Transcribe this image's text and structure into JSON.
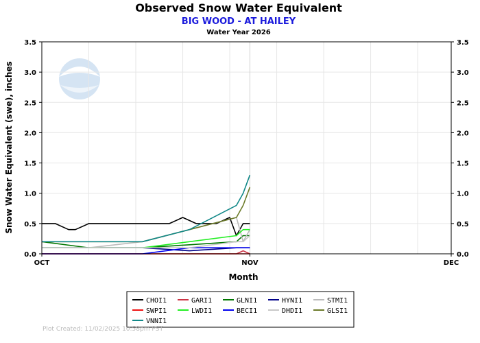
{
  "header": {
    "title": "Observed Snow Water Equivalent",
    "subtitle": "BIG WOOD - AT HAILEY",
    "water_year": "Water Year 2026"
  },
  "footer": {
    "text": "Plot Created: 11/02/2025 10:58pm PST"
  },
  "colors": {
    "subtitle": "#1a1adc",
    "grid": "#e6e6e6"
  },
  "chart_data": {
    "type": "line",
    "xlabel": "Month",
    "ylabel": "Snow Water Equivalent (swe),  inches",
    "x_ticks": [
      "OCT",
      "NOV",
      "DEC"
    ],
    "x_domain": [
      "Oct 1",
      "Dec 1"
    ],
    "ylim": [
      0,
      3.5
    ],
    "y_ticks": [
      "0.0",
      "0.5",
      "1.0",
      "1.5",
      "2.0",
      "2.5",
      "3.0",
      "3.5"
    ],
    "grid": true,
    "legend_position": "bottom",
    "series": [
      {
        "name": "CHOI1",
        "color": "#000000",
        "x": [
          "Oct 1",
          "Oct 3",
          "Oct 5",
          "Oct 6",
          "Oct 8",
          "Oct 10",
          "Oct 12",
          "Oct 14",
          "Oct 16",
          "Oct 18",
          "Oct 20",
          "Oct 22",
          "Oct 24",
          "Oct 25",
          "Oct 27",
          "Oct 29",
          "Oct 30",
          "Oct 31",
          "Nov 1"
        ],
        "y": [
          0.5,
          0.5,
          0.4,
          0.4,
          0.5,
          0.5,
          0.5,
          0.5,
          0.5,
          0.5,
          0.5,
          0.6,
          0.5,
          0.5,
          0.5,
          0.6,
          0.3,
          0.5,
          0.5
        ]
      },
      {
        "name": "GARI1",
        "color": "#cc3344",
        "x": [
          "Oct 1",
          "Oct 8",
          "Oct 16",
          "Oct 23",
          "Oct 30",
          "Oct 31",
          "Nov 1"
        ],
        "y": [
          0.0,
          0.0,
          0.0,
          0.0,
          0.0,
          0.05,
          0.0
        ]
      },
      {
        "name": "GLNI1",
        "color": "#007700",
        "x": [
          "Oct 1",
          "Oct 8",
          "Oct 16",
          "Oct 23",
          "Oct 30",
          "Oct 31",
          "Nov 1"
        ],
        "y": [
          0.2,
          0.1,
          0.1,
          0.15,
          0.2,
          0.3,
          0.3
        ]
      },
      {
        "name": "HYNI1",
        "color": "#000088",
        "x": [
          "Oct 1",
          "Oct 8",
          "Oct 16",
          "Oct 23",
          "Oct 30",
          "Oct 31",
          "Nov 1"
        ],
        "y": [
          0.1,
          0.1,
          0.1,
          0.05,
          0.1,
          0.1,
          0.1
        ]
      },
      {
        "name": "STMI1",
        "color": "#bbbbbb",
        "x": [
          "Oct 1",
          "Oct 8",
          "Oct 16",
          "Oct 23",
          "Oct 30",
          "Oct 31",
          "Nov 1"
        ],
        "y": [
          0.1,
          0.1,
          0.2,
          0.4,
          0.6,
          0.2,
          0.4
        ]
      },
      {
        "name": "SWPI1",
        "color": "#ee1111",
        "x": [
          "Oct 1",
          "Oct 8",
          "Oct 16",
          "Oct 23",
          "Oct 30",
          "Oct 31",
          "Nov 1"
        ],
        "y": [
          0.0,
          0.0,
          0.0,
          0.0,
          0.0,
          0.0,
          0.0
        ]
      },
      {
        "name": "LWDI1",
        "color": "#22ee22",
        "x": [
          "Oct 1",
          "Oct 8",
          "Oct 16",
          "Oct 23",
          "Oct 30",
          "Oct 31",
          "Nov 1"
        ],
        "y": [
          0.1,
          0.1,
          0.1,
          0.2,
          0.3,
          0.4,
          0.4
        ]
      },
      {
        "name": "BECI1",
        "color": "#0000ee",
        "x": [
          "Oct 1",
          "Oct 8",
          "Oct 16",
          "Oct 23",
          "Oct 30",
          "Oct 31",
          "Nov 1"
        ],
        "y": [
          0.0,
          0.0,
          0.0,
          0.1,
          0.1,
          0.1,
          0.1
        ]
      },
      {
        "name": "DHDI1",
        "color": "#c8c8c8",
        "x": [
          "Oct 1",
          "Oct 8",
          "Oct 16",
          "Oct 23",
          "Oct 30",
          "Oct 31",
          "Nov 1"
        ],
        "y": [
          0.1,
          0.1,
          0.1,
          0.1,
          0.2,
          0.2,
          0.3
        ]
      },
      {
        "name": "GLSI1",
        "color": "#6b7a28",
        "x": [
          "Oct 1",
          "Oct 8",
          "Oct 16",
          "Oct 23",
          "Oct 30",
          "Oct 31",
          "Nov 1"
        ],
        "y": [
          0.2,
          0.2,
          0.2,
          0.4,
          0.6,
          0.8,
          1.1
        ]
      },
      {
        "name": "VNNI1",
        "color": "#118888",
        "x": [
          "Oct 1",
          "Oct 8",
          "Oct 16",
          "Oct 23",
          "Oct 30",
          "Oct 31",
          "Nov 1"
        ],
        "y": [
          0.2,
          0.2,
          0.2,
          0.4,
          0.8,
          1.0,
          1.3
        ]
      }
    ]
  }
}
